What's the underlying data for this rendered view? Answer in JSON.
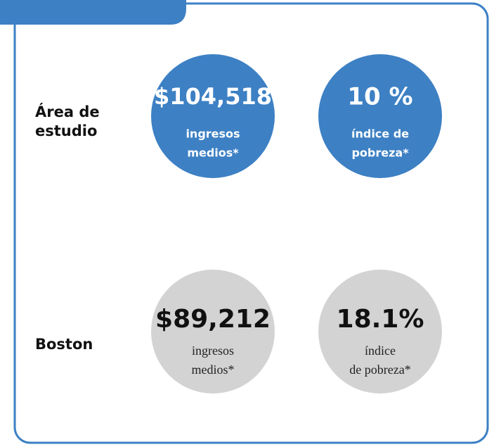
{
  "rows": [
    {
      "label": [
        "Área de",
        "estudio"
      ],
      "stats": [
        {
          "value": "$104,518",
          "caption": [
            "ingresos",
            "medios*"
          ]
        },
        {
          "value": "10 %",
          "caption": [
            "índice de",
            "pobreza*"
          ]
        }
      ]
    },
    {
      "label": [
        "Boston"
      ],
      "stats": [
        {
          "value": "$89,212",
          "caption": [
            "ingresos",
            "medios*"
          ]
        },
        {
          "value": "18.1%",
          "caption": [
            "índice",
            "de pobreza*"
          ]
        }
      ]
    }
  ]
}
